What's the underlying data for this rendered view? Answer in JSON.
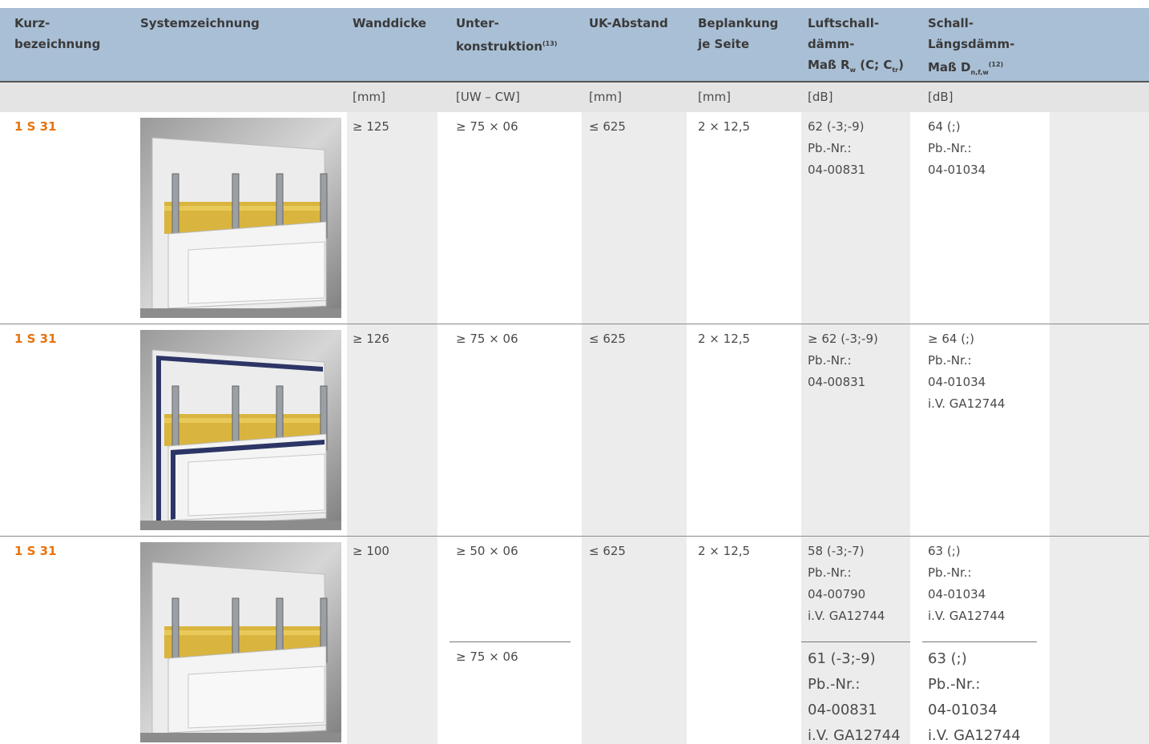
{
  "table": {
    "headers": {
      "kurz": [
        [
          {
            "text": "Kurz-"
          }
        ],
        [
          {
            "text": "bezeichnung"
          }
        ]
      ],
      "system": [
        [
          {
            "text": "Systemzeichnung"
          }
        ]
      ],
      "wanddicke": [
        [
          {
            "text": "Wanddicke"
          }
        ]
      ],
      "unter": [
        [
          {
            "text": "Unter-"
          }
        ],
        [
          {
            "text": "konstruktion"
          },
          {
            "text": "(13)",
            "pos": "sup"
          }
        ]
      ],
      "uk": [
        [
          {
            "text": "UK-Abstand"
          }
        ]
      ],
      "beplankung": [
        [
          {
            "text": "Beplankung"
          }
        ],
        [
          {
            "text": "je Seite"
          }
        ]
      ],
      "luft": [
        [
          {
            "text": "Luftschall-"
          }
        ],
        [
          {
            "text": "dämm-"
          }
        ],
        [
          {
            "text": "Maß R"
          },
          {
            "text": "w",
            "pos": "sub"
          },
          {
            "text": " (C; C"
          },
          {
            "text": "tr",
            "pos": "sub"
          },
          {
            "text": ")"
          }
        ]
      ],
      "schall": [
        [
          {
            "text": "Schall-"
          }
        ],
        [
          {
            "text": "Längsdämm-"
          }
        ],
        [
          {
            "text": "Maß D"
          },
          {
            "text": "n,f,w",
            "pos": "sub"
          },
          {
            "text": "(12)",
            "pos": "sup"
          }
        ]
      ]
    },
    "units": {
      "wanddicke": "[mm]",
      "unter": "[UW – CW]",
      "uk": "[mm]",
      "beplankung": "[mm]",
      "luft": "[dB]",
      "schall": "[dB]"
    },
    "rows": [
      {
        "kurz": "1 S 31",
        "wanddicke": "≥ 125",
        "unter": [
          [
            "≥ 75 × 06"
          ]
        ],
        "uk": "≤ 625",
        "beplankung": "2 × 12,5",
        "luft": [
          [
            "62 (-3;-9)",
            "Pb.-Nr.:",
            "04-00831"
          ]
        ],
        "schall": [
          [
            "64 (;)",
            "Pb.-Nr.:",
            "04-01034"
          ]
        ]
      },
      {
        "kurz": "1 S 31",
        "wanddicke": "≥ 126",
        "unter": [
          [
            "≥ 75 × 06"
          ]
        ],
        "uk": "≤ 625",
        "beplankung": "2 × 12,5",
        "luft": [
          [
            "≥ 62 (-3;-9)",
            "Pb.-Nr.:",
            "04-00831"
          ]
        ],
        "schall": [
          [
            "≥ 64 (;)",
            "Pb.-Nr.:",
            "04-01034",
            "i.V. GA12744"
          ]
        ]
      },
      {
        "kurz": "1 S 31",
        "wanddicke": "≥ 100",
        "unter": [
          [
            "≥ 50 × 06"
          ],
          [
            "≥ 75 × 06"
          ]
        ],
        "uk": "≤ 625",
        "beplankung": "2 × 12,5",
        "luft": [
          [
            "58 (-3;-7)",
            "Pb.-Nr.:",
            "04-00790",
            "i.V. GA12744"
          ],
          [
            "61 (-3;-9)",
            "Pb.-Nr.:",
            "04-00831",
            "i.V. GA12744"
          ]
        ],
        "schall": [
          [
            "63 (;)",
            "Pb.-Nr.:",
            "04-01034",
            "i.V. GA12744"
          ],
          [
            "63 (;)",
            "Pb.-Nr.:",
            "04-01034",
            "i.V. GA12744"
          ]
        ]
      }
    ]
  }
}
